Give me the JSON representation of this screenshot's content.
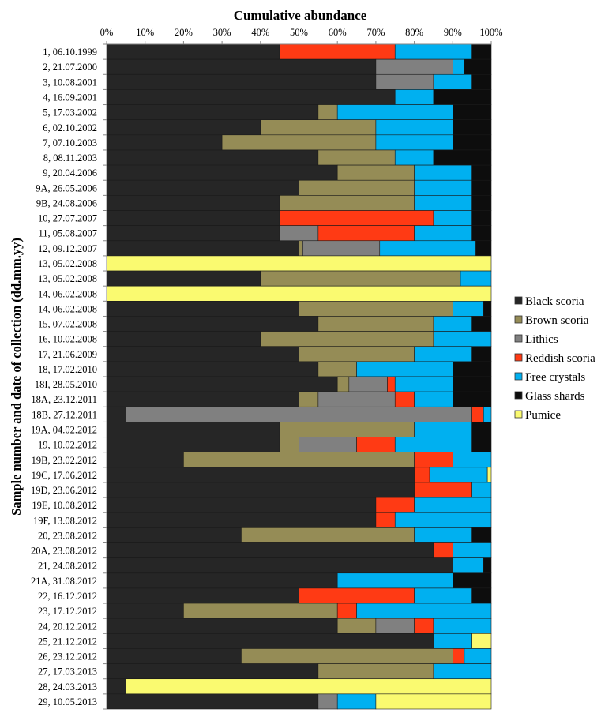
{
  "chart_data": {
    "type": "bar",
    "orientation": "horizontal",
    "stacked": "percent",
    "title": "Cumulative  abundance",
    "xlabel": "Cumulative  abundance",
    "ylabel": "Sample number and date of collection (dd.mm.yy)",
    "xlim": [
      0,
      100
    ],
    "xticks": [
      "0%",
      "10%",
      "20%",
      "30%",
      "40%",
      "50%",
      "60%",
      "70%",
      "80%",
      "90%",
      "100%"
    ],
    "xaxis_position": "top",
    "grid": false,
    "legend_position": "right",
    "categories": [
      "1, 06.10.1999",
      "2, 21.07.2000",
      "3, 10.08.2001",
      "4, 16.09.2001",
      "5, 17.03.2002",
      "6, 02.10.2002",
      "7, 07.10.2003",
      "8, 08.11.2003",
      "9, 20.04.2006",
      "9A, 26.05.2006",
      "9B, 24.08.2006",
      "10, 27.07.2007",
      "11, 05.08.2007",
      "12, 09.12.2007",
      "13, 05.02.2008",
      "13, 05.02.2008",
      "14, 06.02.2008",
      "14, 06.02.2008",
      "15, 07.02.2008",
      "16, 10.02.2008",
      "17, 21.06.2009",
      "18, 17.02.2010",
      "18I, 28.05.2010",
      "18A, 23.12.2011",
      "18B, 27.12.2011",
      "19A, 04.02.2012",
      "19, 10.02.2012",
      "19B, 23.02.2012",
      "19C, 17.06.2012",
      "19D, 23.06.2012",
      "19E, 10.08.2012",
      "19F, 13.08.2012",
      "20, 23.08.2012",
      "20A, 23.08.2012",
      "21, 24.08.2012",
      "21A, 31.08.2012",
      "22, 16.12.2012",
      "23, 17.12.2012",
      "24, 20.12.2012",
      "25, 21.12.2012",
      "26, 23.12.2012",
      "27, 17.03.2013",
      "28, 24.03.2013",
      "29, 10.05.2013"
    ],
    "series": [
      {
        "name": "Black scoria",
        "color": "#262626",
        "values": [
          45,
          70,
          70,
          75,
          55,
          40,
          30,
          55,
          60,
          50,
          45,
          45,
          45,
          50,
          0,
          40,
          0,
          50,
          55,
          40,
          50,
          55,
          60,
          50,
          5,
          45,
          45,
          20,
          80,
          80,
          70,
          70,
          35,
          85,
          90,
          60,
          50,
          20,
          60,
          85,
          35,
          55,
          5,
          55
        ]
      },
      {
        "name": "Brown scoria",
        "color": "#958c56",
        "values": [
          0,
          0,
          0,
          0,
          5,
          30,
          40,
          20,
          20,
          30,
          35,
          0,
          0,
          1,
          0,
          52,
          0,
          40,
          30,
          45,
          30,
          10,
          3,
          5,
          0,
          35,
          5,
          60,
          0,
          0,
          0,
          0,
          45,
          0,
          0,
          0,
          0,
          40,
          10,
          0,
          55,
          30,
          0,
          0
        ]
      },
      {
        "name": "Lithics",
        "color": "#808080",
        "values": [
          0,
          20,
          15,
          0,
          0,
          0,
          0,
          0,
          0,
          0,
          0,
          0,
          10,
          20,
          0,
          0,
          0,
          0,
          0,
          0,
          0,
          0,
          10,
          20,
          90,
          0,
          15,
          0,
          0,
          0,
          0,
          0,
          0,
          0,
          0,
          0,
          0,
          0,
          10,
          0,
          0,
          0,
          0,
          5
        ]
      },
      {
        "name": "Reddish scoria",
        "color": "#ff3a14",
        "values": [
          30,
          0,
          0,
          0,
          0,
          0,
          0,
          0,
          0,
          0,
          0,
          40,
          25,
          0,
          0,
          0,
          0,
          0,
          0,
          0,
          0,
          0,
          2,
          5,
          3,
          0,
          10,
          10,
          4,
          15,
          10,
          5,
          0,
          5,
          0,
          0,
          30,
          5,
          5,
          0,
          3,
          0,
          0,
          0
        ]
      },
      {
        "name": "Free crystals",
        "color": "#00b0f0",
        "values": [
          20,
          3,
          10,
          10,
          30,
          20,
          20,
          10,
          15,
          15,
          15,
          10,
          15,
          25,
          0,
          8,
          0,
          8,
          10,
          15,
          15,
          25,
          15,
          10,
          2,
          15,
          20,
          10,
          15,
          5,
          20,
          25,
          15,
          10,
          8,
          30,
          15,
          35,
          15,
          10,
          7,
          15,
          0,
          10
        ]
      },
      {
        "name": "Glass shards",
        "color": "#0d0d0d",
        "values": [
          5,
          7,
          5,
          15,
          10,
          10,
          10,
          15,
          5,
          5,
          5,
          5,
          5,
          4,
          0,
          0,
          0,
          2,
          5,
          0,
          5,
          10,
          10,
          10,
          0,
          5,
          5,
          0,
          0,
          0,
          0,
          0,
          5,
          0,
          2,
          10,
          5,
          0,
          0,
          0,
          0,
          0,
          0,
          0
        ]
      },
      {
        "name": "Pumice",
        "color": "#fafa70",
        "values": [
          0,
          0,
          0,
          0,
          0,
          0,
          0,
          0,
          0,
          0,
          0,
          0,
          0,
          0,
          100,
          0,
          100,
          0,
          0,
          0,
          0,
          0,
          0,
          0,
          0,
          0,
          0,
          0,
          1,
          0,
          0,
          0,
          0,
          0,
          0,
          0,
          0,
          0,
          0,
          5,
          0,
          0,
          95,
          30
        ]
      }
    ]
  }
}
